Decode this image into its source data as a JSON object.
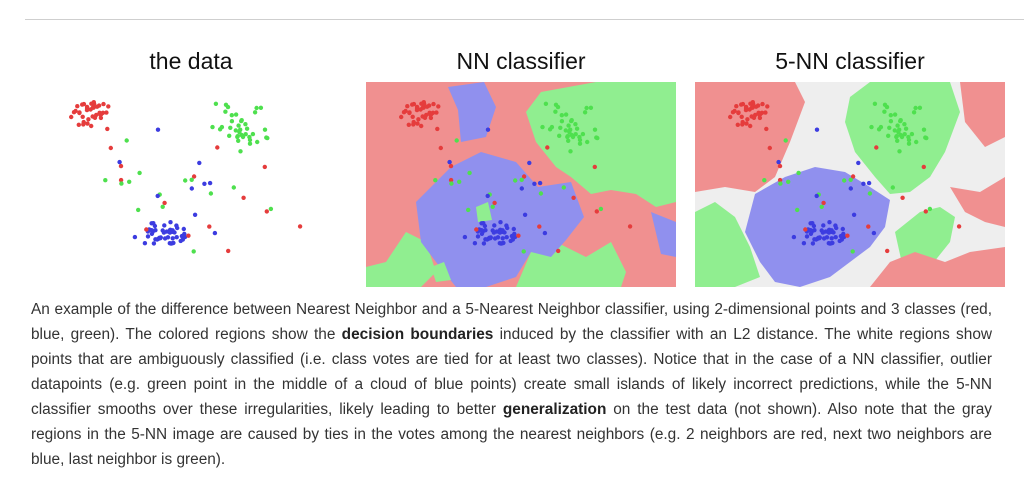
{
  "panels": [
    {
      "id": "data",
      "title": "the data"
    },
    {
      "id": "nn",
      "title": "NN classifier"
    },
    {
      "id": "knn",
      "title": "5-NN classifier"
    }
  ],
  "caption": {
    "p1": "An example of the difference between Nearest Neighbor and a 5-Nearest Neighbor classifier, using 2-dimensional points and 3 classes (red, blue, green). The colored regions show the ",
    "b1": "decision boundaries",
    "p2": " induced by the classifier with an L2 distance. The white regions show points that are ambiguously classified (i.e. class votes are tied for at least two classes). Notice that in the case of a NN classifier, outlier datapoints (e.g. green point in the middle of a cloud of blue points) create small islands of likely incorrect predictions, while the 5-NN classifier smooths over these irregularities, likely leading to better ",
    "b2": "generalization",
    "p3": " on the test data (not shown). Also note that the gray regions in the 5-NN image are caused by ties in the votes among the nearest neighbors (e.g. 2 neighbors are red, next two neighbors are blue, last neighbor is green)."
  },
  "colors": {
    "red_point": "#e53c3c",
    "green_point": "#4ee04e",
    "blue_point": "#3c3ce0",
    "red_region": "#f09090",
    "green_region": "#90ee90",
    "blue_region": "#9090ee",
    "tie_region": "#eeeeee"
  }
}
